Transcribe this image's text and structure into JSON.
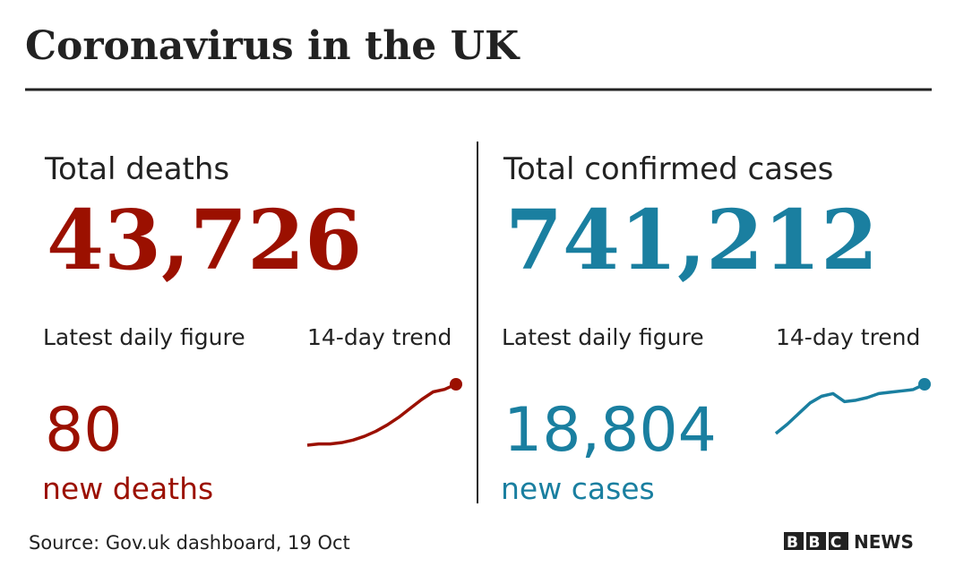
{
  "header": {
    "title": "Coronavirus in the UK"
  },
  "panels": [
    {
      "label": "Total deaths",
      "total": "43,726",
      "daily_label": "Latest daily figure",
      "trend_label": "14-day trend",
      "daily": "80",
      "daily_unit": "new deaths",
      "color": "#9b1000",
      "trend": {
        "type": "line",
        "values": [
          56,
          57,
          57,
          58,
          60,
          63,
          67,
          72,
          78,
          85,
          92,
          98,
          100,
          104
        ]
      }
    },
    {
      "label": "Total confirmed cases",
      "total": "741,212",
      "daily_label": "Latest daily figure",
      "trend_label": "14-day trend",
      "daily": "18,804",
      "daily_unit": "new cases",
      "color": "#1a7fa0",
      "trend": {
        "type": "line",
        "values": [
          12500,
          13200,
          14000,
          14800,
          15300,
          15500,
          14900,
          15000,
          15200,
          15500,
          15600,
          15700,
          15800,
          16200
        ]
      }
    }
  ],
  "footer": {
    "source": "Source: Gov.uk dashboard, 19 Oct",
    "logo_mark": "BBC",
    "logo_text": "NEWS"
  }
}
